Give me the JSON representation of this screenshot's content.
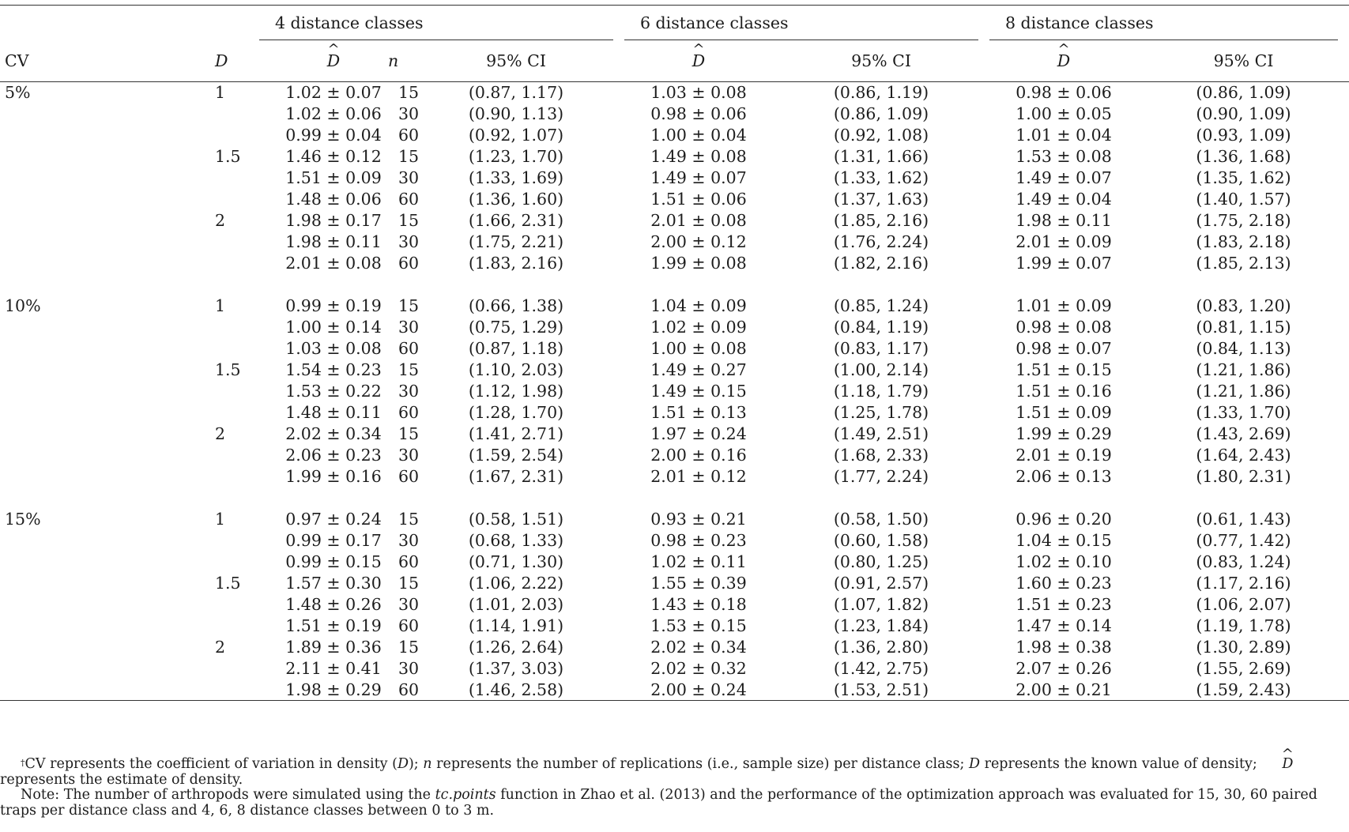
{
  "header": {
    "groups": [
      "4 distance classes",
      "6 distance classes",
      "8 distance classes"
    ],
    "col_cv": "CV",
    "col_d": "D",
    "col_n": "n",
    "col_dhat": "D",
    "col_ci": "95% CI"
  },
  "blocks": [
    {
      "cv": "5%",
      "rows": [
        {
          "d": "1",
          "n": "15",
          "v": [
            "1.02 ± 0.07",
            "(0.87, 1.17)",
            "1.03 ± 0.08",
            "(0.86, 1.19)",
            "0.98 ± 0.06",
            "(0.86, 1.09)"
          ]
        },
        {
          "d": "",
          "n": "30",
          "v": [
            "1.02 ± 0.06",
            "(0.90, 1.13)",
            "0.98 ± 0.06",
            "(0.86, 1.09)",
            "1.00 ± 0.05",
            "(0.90, 1.09)"
          ]
        },
        {
          "d": "",
          "n": "60",
          "v": [
            "0.99 ± 0.04",
            "(0.92, 1.07)",
            "1.00 ± 0.04",
            "(0.92, 1.08)",
            "1.01 ± 0.04",
            "(0.93, 1.09)"
          ]
        },
        {
          "d": "1.5",
          "n": "15",
          "v": [
            "1.46 ± 0.12",
            "(1.23, 1.70)",
            "1.49 ± 0.08",
            "(1.31, 1.66)",
            "1.53 ± 0.08",
            "(1.36, 1.68)"
          ]
        },
        {
          "d": "",
          "n": "30",
          "v": [
            "1.51 ± 0.09",
            "(1.33, 1.69)",
            "1.49 ± 0.07",
            "(1.33, 1.62)",
            "1.49 ± 0.07",
            "(1.35, 1.62)"
          ]
        },
        {
          "d": "",
          "n": "60",
          "v": [
            "1.48 ± 0.06",
            "(1.36, 1.60)",
            "1.51 ± 0.06",
            "(1.37, 1.63)",
            "1.49 ± 0.04",
            "(1.40, 1.57)"
          ]
        },
        {
          "d": "2",
          "n": "15",
          "v": [
            "1.98 ± 0.17",
            "(1.66, 2.31)",
            "2.01 ± 0.08",
            "(1.85, 2.16)",
            "1.98 ± 0.11",
            "(1.75, 2.18)"
          ]
        },
        {
          "d": "",
          "n": "30",
          "v": [
            "1.98 ± 0.11",
            "(1.75, 2.21)",
            "2.00 ± 0.12",
            "(1.76, 2.24)",
            "2.01 ± 0.09",
            "(1.83, 2.18)"
          ]
        },
        {
          "d": "",
          "n": "60",
          "v": [
            "2.01 ± 0.08",
            "(1.83, 2.16)",
            "1.99 ± 0.08",
            "(1.82, 2.16)",
            "1.99 ± 0.07",
            "(1.85, 2.13)"
          ]
        }
      ]
    },
    {
      "cv": "10%",
      "rows": [
        {
          "d": "1",
          "n": "15",
          "v": [
            "0.99 ± 0.19",
            "(0.66, 1.38)",
            "1.04 ± 0.09",
            "(0.85, 1.24)",
            "1.01 ± 0.09",
            "(0.83, 1.20)"
          ]
        },
        {
          "d": "",
          "n": "30",
          "v": [
            "1.00 ± 0.14",
            "(0.75, 1.29)",
            "1.02 ± 0.09",
            "(0.84, 1.19)",
            "0.98 ± 0.08",
            "(0.81, 1.15)"
          ]
        },
        {
          "d": "",
          "n": "60",
          "v": [
            "1.03 ± 0.08",
            "(0.87, 1.18)",
            "1.00 ± 0.08",
            "(0.83, 1.17)",
            "0.98 ± 0.07",
            "(0.84, 1.13)"
          ]
        },
        {
          "d": "1.5",
          "n": "15",
          "v": [
            "1.54 ± 0.23",
            "(1.10, 2.03)",
            "1.49 ± 0.27",
            "(1.00, 2.14)",
            "1.51 ± 0.15",
            "(1.21, 1.86)"
          ]
        },
        {
          "d": "",
          "n": "30",
          "v": [
            "1.53 ± 0.22",
            "(1.12, 1.98)",
            "1.49 ± 0.15",
            "(1.18, 1.79)",
            "1.51 ± 0.16",
            "(1.21, 1.86)"
          ]
        },
        {
          "d": "",
          "n": "60",
          "v": [
            "1.48 ± 0.11",
            "(1.28, 1.70)",
            "1.51 ± 0.13",
            "(1.25, 1.78)",
            "1.51 ± 0.09",
            "(1.33, 1.70)"
          ]
        },
        {
          "d": "2",
          "n": "15",
          "v": [
            "2.02 ± 0.34",
            "(1.41, 2.71)",
            "1.97 ± 0.24",
            "(1.49, 2.51)",
            "1.99 ± 0.29",
            "(1.43, 2.69)"
          ]
        },
        {
          "d": "",
          "n": "30",
          "v": [
            "2.06 ± 0.23",
            "(1.59, 2.54)",
            "2.00 ± 0.16",
            "(1.68, 2.33)",
            "2.01 ± 0.19",
            "(1.64, 2.43)"
          ]
        },
        {
          "d": "",
          "n": "60",
          "v": [
            "1.99 ± 0.16",
            "(1.67, 2.31)",
            "2.01 ± 0.12",
            "(1.77, 2.24)",
            "2.06 ± 0.13",
            "(1.80, 2.31)"
          ]
        }
      ]
    },
    {
      "cv": "15%",
      "rows": [
        {
          "d": "1",
          "n": "15",
          "v": [
            "0.97 ± 0.24",
            "(0.58, 1.51)",
            "0.93 ± 0.21",
            "(0.58, 1.50)",
            "0.96 ± 0.20",
            "(0.61, 1.43)"
          ]
        },
        {
          "d": "",
          "n": "30",
          "v": [
            "0.99 ± 0.17",
            "(0.68, 1.33)",
            "0.98 ± 0.23",
            "(0.60, 1.58)",
            "1.04 ± 0.15",
            "(0.77, 1.42)"
          ]
        },
        {
          "d": "",
          "n": "60",
          "v": [
            "0.99 ± 0.15",
            "(0.71, 1.30)",
            "1.02 ± 0.11",
            "(0.80, 1.25)",
            "1.02 ± 0.10",
            "(0.83, 1.24)"
          ]
        },
        {
          "d": "1.5",
          "n": "15",
          "v": [
            "1.57 ± 0.30",
            "(1.06, 2.22)",
            "1.55 ± 0.39",
            "(0.91, 2.57)",
            "1.60 ± 0.23",
            "(1.17, 2.16)"
          ]
        },
        {
          "d": "",
          "n": "30",
          "v": [
            "1.48 ± 0.26",
            "(1.01, 2.03)",
            "1.43 ± 0.18",
            "(1.07, 1.82)",
            "1.51 ± 0.23",
            "(1.06, 2.07)"
          ]
        },
        {
          "d": "",
          "n": "60",
          "v": [
            "1.51 ± 0.19",
            "(1.14, 1.91)",
            "1.53 ± 0.15",
            "(1.23, 1.84)",
            "1.47 ± 0.14",
            "(1.19, 1.78)"
          ]
        },
        {
          "d": "2",
          "n": "15",
          "v": [
            "1.89 ± 0.36",
            "(1.26, 2.64)",
            "2.02 ± 0.34",
            "(1.36, 2.80)",
            "1.98 ± 0.38",
            "(1.30, 2.89)"
          ]
        },
        {
          "d": "",
          "n": "30",
          "v": [
            "2.11 ± 0.41",
            "(1.37, 3.03)",
            "2.02 ± 0.32",
            "(1.42, 2.75)",
            "2.07 ± 0.26",
            "(1.55, 2.69)"
          ]
        },
        {
          "d": "",
          "n": "60",
          "v": [
            "1.98 ± 0.29",
            "(1.46, 2.58)",
            "2.00 ± 0.24",
            "(1.53, 2.51)",
            "2.00 ± 0.21",
            "(1.59, 2.43)"
          ]
        }
      ]
    }
  ],
  "notes": {
    "fn_marker": "†",
    "fn_parts": [
      "CV represents the coefficient of variation in density (",
      "D",
      "); ",
      "n",
      " represents the number of replications (i.e., sample size) per distance class; ",
      "D",
      " represents the known value of density; ",
      "D",
      " represents the estimate of density."
    ],
    "note_parts": [
      "Note: The number of arthropods were simulated using the ",
      "tc.points",
      " function in Zhao et al. (2013) and the performance of the optimization approach was evaluated for 15, 30, 60 paired traps per distance class and 4, 6, 8 distance classes between 0 to 3 m."
    ]
  }
}
